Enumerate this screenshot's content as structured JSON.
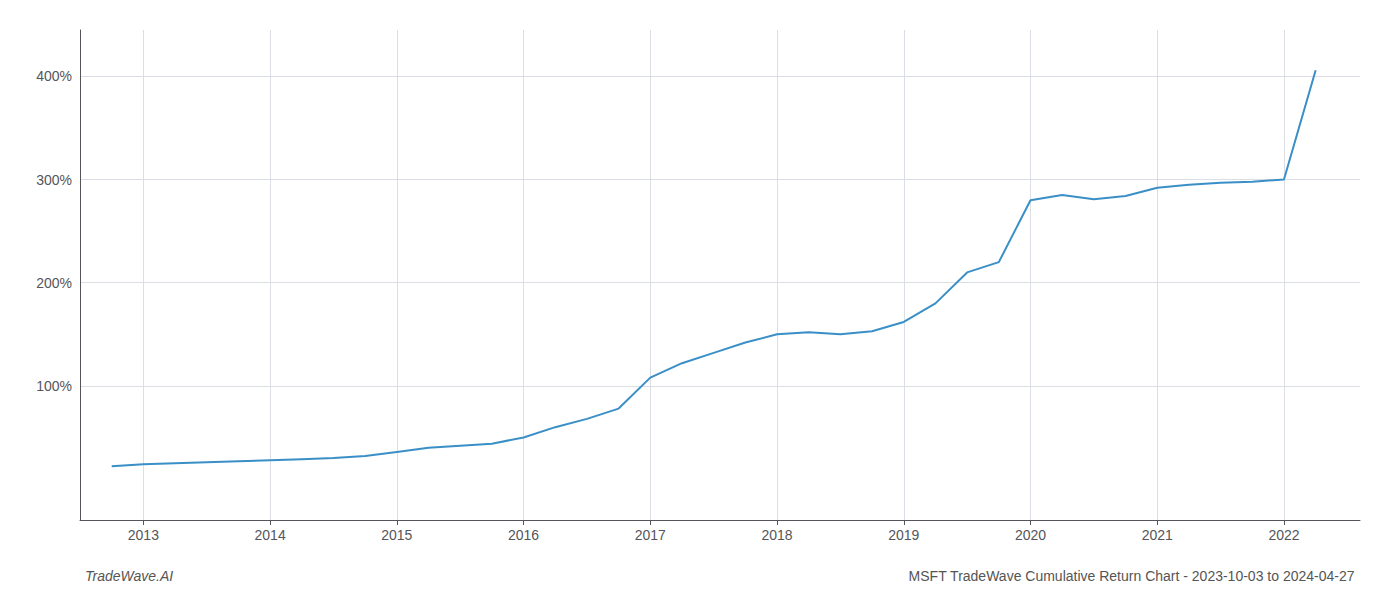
{
  "chart_data": {
    "type": "line",
    "title": "MSFT TradeWave Cumulative Return Chart - 2023-10-03 to 2024-04-27",
    "annotations": [
      "TradeWave.AI"
    ],
    "color": "#3a8fc7",
    "x": [
      2012.75,
      2013.0,
      2013.25,
      2013.5,
      2013.75,
      2014.0,
      2014.25,
      2014.5,
      2014.75,
      2015.0,
      2015.25,
      2015.5,
      2015.75,
      2016.0,
      2016.25,
      2016.5,
      2016.75,
      2017.0,
      2017.25,
      2017.5,
      2017.75,
      2018.0,
      2018.25,
      2018.5,
      2018.75,
      2019.0,
      2019.25,
      2019.5,
      2019.75,
      2020.0,
      2020.25,
      2020.5,
      2020.75,
      2021.0,
      2021.25,
      2021.5,
      2021.75,
      2022.0,
      2022.25
    ],
    "values": [
      22,
      24,
      25,
      26,
      27,
      28,
      29,
      30,
      32,
      36,
      40,
      42,
      44,
      50,
      60,
      68,
      78,
      108,
      122,
      132,
      142,
      150,
      152,
      150,
      153,
      162,
      180,
      210,
      220,
      280,
      285,
      281,
      284,
      292,
      295,
      297,
      298,
      300,
      406
    ],
    "xlim": [
      2012.5,
      2022.6
    ],
    "xticks": [
      2013,
      2014,
      2015,
      2016,
      2017,
      2018,
      2019,
      2020,
      2021,
      2022
    ],
    "ylim": [
      -30,
      445
    ],
    "yticks": [
      {
        "value": 100,
        "label": "100%"
      },
      {
        "value": 200,
        "label": "200%"
      },
      {
        "value": 300,
        "label": "300%"
      },
      {
        "value": 400,
        "label": "400%"
      }
    ],
    "grid": true
  }
}
